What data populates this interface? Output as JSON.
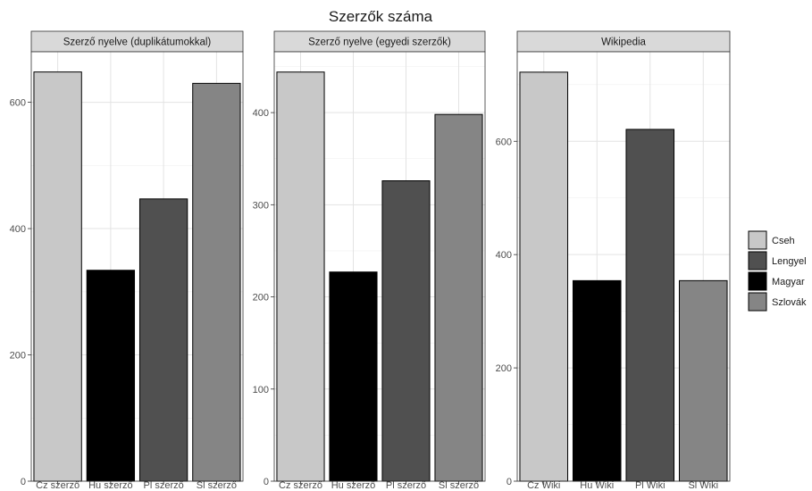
{
  "chart_data": {
    "type": "bar",
    "title": "Szerzők száma",
    "legend": {
      "position": "right",
      "entries": [
        {
          "name": "Cseh",
          "color": "#c8c8c8"
        },
        {
          "name": "Lengyel",
          "color": "#505050"
        },
        {
          "name": "Magyar",
          "color": "#000000"
        },
        {
          "name": "Szlovák",
          "color": "#858585"
        }
      ]
    },
    "grid": true,
    "panels": [
      {
        "strip": "Szerző nyelve (duplikátumokkal)",
        "categories": [
          "Cz szerző",
          "Hu szerző",
          "Pl szerző",
          "Sl szerző"
        ],
        "groups": [
          "Cseh",
          "Magyar",
          "Lengyel",
          "Szlovák"
        ],
        "values": [
          648,
          334,
          447,
          630
        ],
        "ylim": [
          0,
          680
        ],
        "yticks": [
          0,
          200,
          400,
          600
        ]
      },
      {
        "strip": "Szerző nyelve (egyedi szerzők)",
        "categories": [
          "Cz szerző",
          "Hu szerző",
          "Pl szerző",
          "Sl szerző"
        ],
        "groups": [
          "Cseh",
          "Magyar",
          "Lengyel",
          "Szlovák"
        ],
        "values": [
          444,
          227,
          326,
          398
        ],
        "ylim": [
          0,
          466
        ],
        "yticks": [
          0,
          100,
          200,
          300,
          400
        ]
      },
      {
        "strip": "Wikipedia",
        "categories": [
          "Cz Wiki",
          "Hu Wiki",
          "Pl Wiki",
          "Sl Wiki"
        ],
        "groups": [
          "Cseh",
          "Magyar",
          "Lengyel",
          "Szlovák"
        ],
        "values": [
          722,
          354,
          621,
          354
        ],
        "ylim": [
          0,
          758
        ],
        "yticks": [
          0,
          200,
          400,
          600
        ]
      }
    ]
  }
}
